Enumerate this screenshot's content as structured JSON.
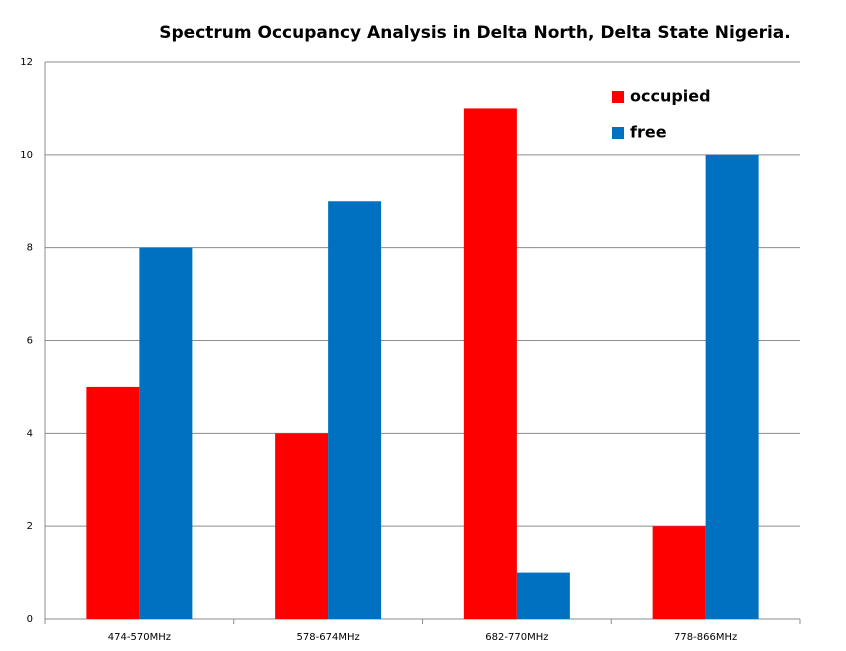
{
  "chart_data": {
    "type": "bar",
    "title": "Spectrum Occupancy Analysis in Delta North, Delta State Nigeria.",
    "categories": [
      "474-570MHz",
      "578-674MHz",
      "682-770MHz",
      "778-866MHz"
    ],
    "series": [
      {
        "name": "occupied",
        "color": "#ff0000",
        "values": [
          5,
          4,
          11,
          2
        ]
      },
      {
        "name": "free",
        "color": "#0070c0",
        "values": [
          8,
          9,
          1,
          10
        ]
      }
    ],
    "ylim": [
      0,
      12
    ],
    "yticks": [
      0,
      2,
      4,
      6,
      8,
      10,
      12
    ],
    "grid": true,
    "legend": "upper right"
  }
}
